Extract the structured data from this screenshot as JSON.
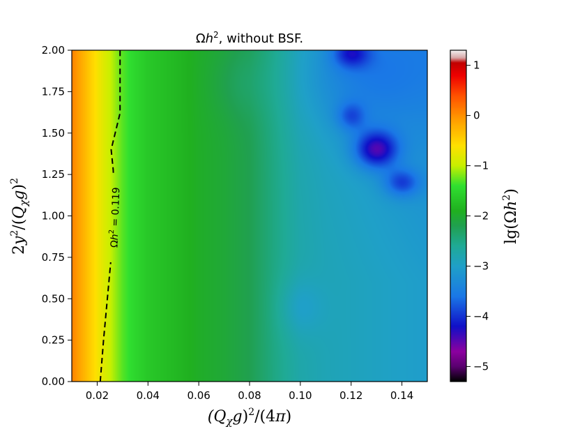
{
  "chart_data": {
    "type": "heatmap",
    "title": "Ωh², without BSF.",
    "xlabel": "(Q_χ g)²/(4π)",
    "ylabel": "2y²/(Q_χ g)²",
    "xlim": [
      0.01,
      0.15
    ],
    "ylim": [
      0.0,
      2.0
    ],
    "x_ticks": [
      0.02,
      0.04,
      0.06,
      0.08,
      0.1,
      0.12,
      0.14
    ],
    "x_tick_labels": [
      "0.02",
      "0.04",
      "0.06",
      "0.08",
      "0.10",
      "0.12",
      "0.14"
    ],
    "y_ticks": [
      0.0,
      0.25,
      0.5,
      0.75,
      1.0,
      1.25,
      1.5,
      1.75,
      2.0
    ],
    "y_tick_labels": [
      "0.00",
      "0.25",
      "0.50",
      "0.75",
      "1.00",
      "1.25",
      "1.50",
      "1.75",
      "2.00"
    ],
    "colorbar": {
      "label": "lg(Ωh²)",
      "range": [
        -5.3,
        1.3
      ],
      "ticks": [
        1,
        0,
        -1,
        -2,
        -3,
        -4,
        -5
      ],
      "tick_labels": [
        "1",
        "0",
        "−1",
        "−2",
        "−3",
        "−4",
        "−5"
      ],
      "stops": [
        {
          "v": -5.3,
          "c": "#000000"
        },
        {
          "v": -5.0,
          "c": "#5a0070"
        },
        {
          "v": -4.7,
          "c": "#8c00a0"
        },
        {
          "v": -4.2,
          "c": "#1010c8"
        },
        {
          "v": -3.6,
          "c": "#1a78e6"
        },
        {
          "v": -3.0,
          "c": "#1fa0c8"
        },
        {
          "v": -2.6,
          "c": "#1faa96"
        },
        {
          "v": -2.2,
          "c": "#20a050"
        },
        {
          "v": -1.9,
          "c": "#20b020"
        },
        {
          "v": -1.4,
          "c": "#30e030"
        },
        {
          "v": -1.0,
          "c": "#c8f000"
        },
        {
          "v": -0.6,
          "c": "#ffe000"
        },
        {
          "v": -0.1,
          "c": "#ffa000"
        },
        {
          "v": 0.4,
          "c": "#ff5000"
        },
        {
          "v": 0.8,
          "c": "#ee0000"
        },
        {
          "v": 1.05,
          "c": "#c00000"
        },
        {
          "v": 1.15,
          "c": "#d8a8a8"
        },
        {
          "v": 1.3,
          "c": "#f2f2f2"
        }
      ]
    },
    "x_profile": {
      "x": [
        0.01,
        0.014,
        0.018,
        0.022,
        0.026,
        0.03,
        0.035,
        0.04,
        0.05,
        0.06,
        0.07,
        0.08,
        0.09,
        0.1,
        0.11,
        0.12,
        0.13,
        0.14,
        0.15
      ],
      "lg": [
        0.1,
        -0.2,
        -0.5,
        -0.8,
        -1.05,
        -1.3,
        -1.5,
        -1.65,
        -1.8,
        -1.95,
        -2.05,
        -2.2,
        -2.5,
        -2.75,
        -2.85,
        -2.9,
        -2.95,
        -3.0,
        -3.05
      ]
    },
    "features": [
      {
        "name": "blue-valley",
        "x": 0.13,
        "y": 1.4,
        "depth": -1.3,
        "sx": 0.006,
        "sy": 0.08
      },
      {
        "name": "blue-valley",
        "x": 0.14,
        "y": 1.2,
        "depth": -0.8,
        "sx": 0.005,
        "sy": 0.06
      },
      {
        "name": "blue-valley",
        "x": 0.12,
        "y": 1.6,
        "depth": -0.6,
        "sx": 0.004,
        "sy": 0.06
      },
      {
        "name": "blue-valley",
        "x": 0.12,
        "y": 1.98,
        "depth": -0.8,
        "sx": 0.005,
        "sy": 0.06
      },
      {
        "name": "blue-region",
        "x": 0.125,
        "y": 1.85,
        "depth": -0.45,
        "sx": 0.018,
        "sy": 0.25
      },
      {
        "name": "green-dip",
        "x": 0.076,
        "y": 1.8,
        "depth": -0.15,
        "sx": 0.008,
        "sy": 0.15
      },
      {
        "name": "teal-spot",
        "x": 0.1,
        "y": 0.45,
        "depth": -0.25,
        "sx": 0.006,
        "sy": 0.12
      }
    ],
    "series": [
      {
        "name": "contour Ωh² = 0.119",
        "style": "dashed",
        "x": [
          0.0212,
          0.0225,
          0.024,
          0.0255,
          0.027,
          0.0263,
          0.0255,
          0.029,
          0.029,
          0.029
        ],
        "y": [
          0.0,
          0.25,
          0.5,
          0.75,
          1.05,
          1.28,
          1.4,
          1.62,
          1.8,
          2.0
        ]
      }
    ],
    "contour_label": "Ωh² = 0.119"
  }
}
